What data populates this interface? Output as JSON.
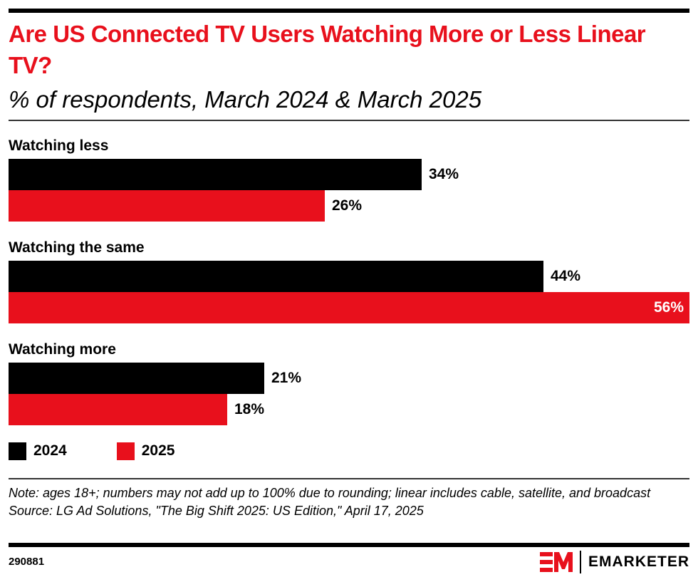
{
  "header": {
    "title": "Are US Connected TV Users Watching More or Less Linear TV?",
    "subtitle": "% of respondents, March 2024 & March 2025"
  },
  "colors": {
    "series_2024": "#000000",
    "series_2025": "#e8101c",
    "title": "#e8101c"
  },
  "chart_data": {
    "type": "bar",
    "orientation": "horizontal",
    "title": "Are US Connected TV Users Watching More or Less Linear TV?",
    "subtitle": "% of respondents, March 2024 & March 2025",
    "categories": [
      "Watching less",
      "Watching the same",
      "Watching more"
    ],
    "series": [
      {
        "name": "2024",
        "color": "#000000",
        "values": [
          34,
          44,
          21
        ],
        "labels": [
          "34%",
          "44%",
          "21%"
        ]
      },
      {
        "name": "2025",
        "color": "#e8101c",
        "values": [
          26,
          56,
          18
        ],
        "labels": [
          "26%",
          "56%",
          "18%"
        ]
      }
    ],
    "xlim": [
      0,
      56
    ],
    "unit": "%",
    "grid": false,
    "legend": "bottom-left",
    "xlabel": "",
    "ylabel": ""
  },
  "legend": [
    {
      "label": "2024",
      "color": "#000000"
    },
    {
      "label": "2025",
      "color": "#e8101c"
    }
  ],
  "footer": {
    "note": "Note: ages 18+; numbers may not add up to 100% due to rounding; linear includes cable, satellite, and broadcast",
    "source": "Source: LG Ad Solutions, \"The Big Shift 2025: US Edition,\" April 17, 2025",
    "chart_id": "290881",
    "brand": "EMARKETER"
  }
}
